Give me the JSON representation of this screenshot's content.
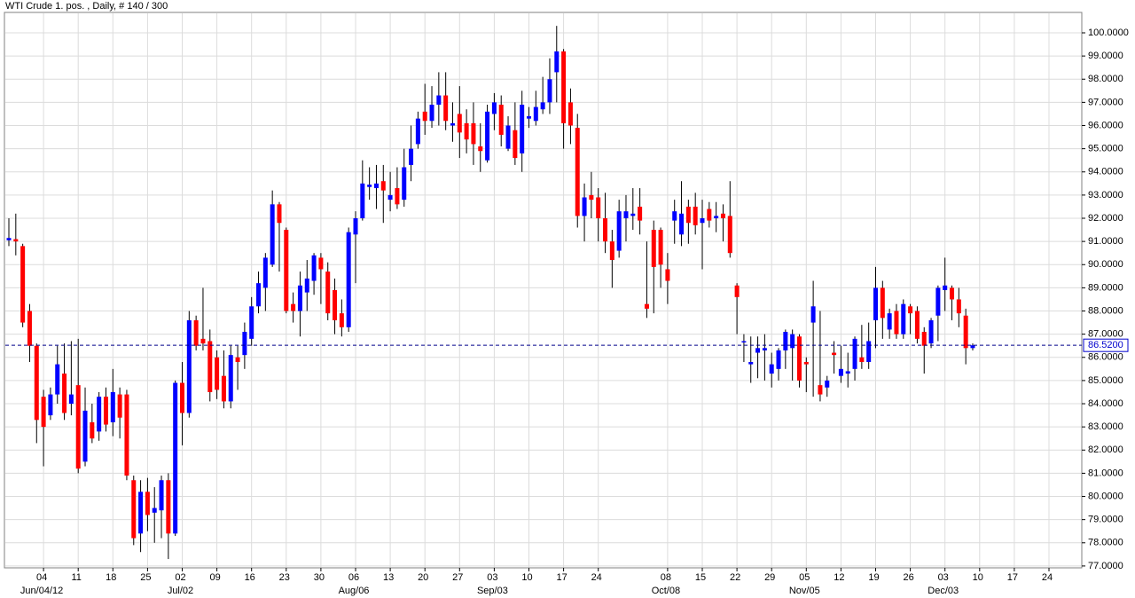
{
  "chart_data": {
    "type": "candlestick",
    "title": "WTI Crude 1. pos. , Daily, # 140 / 300",
    "up_color": "#0000ff",
    "down_color": "#ff0000",
    "wick_color": "#000000",
    "grid": true,
    "x": [
      "2012-05-28",
      "2012-05-29",
      "2012-05-30",
      "2012-05-31",
      "2012-06-01",
      "2012-06-04",
      "2012-06-05",
      "2012-06-06",
      "2012-06-07",
      "2012-06-08",
      "2012-06-11",
      "2012-06-12",
      "2012-06-13",
      "2012-06-14",
      "2012-06-15",
      "2012-06-18",
      "2012-06-19",
      "2012-06-20",
      "2012-06-21",
      "2012-06-22",
      "2012-06-25",
      "2012-06-26",
      "2012-06-27",
      "2012-06-28",
      "2012-06-29",
      "2012-07-02",
      "2012-07-03",
      "2012-07-04",
      "2012-07-05",
      "2012-07-06",
      "2012-07-09",
      "2012-07-10",
      "2012-07-11",
      "2012-07-12",
      "2012-07-13",
      "2012-07-16",
      "2012-07-17",
      "2012-07-18",
      "2012-07-19",
      "2012-07-20",
      "2012-07-23",
      "2012-07-24",
      "2012-07-25",
      "2012-07-26",
      "2012-07-27",
      "2012-07-30",
      "2012-07-31",
      "2012-08-01",
      "2012-08-02",
      "2012-08-03",
      "2012-08-06",
      "2012-08-07",
      "2012-08-08",
      "2012-08-09",
      "2012-08-10",
      "2012-08-13",
      "2012-08-14",
      "2012-08-15",
      "2012-08-16",
      "2012-08-17",
      "2012-08-20",
      "2012-08-21",
      "2012-08-22",
      "2012-08-23",
      "2012-08-24",
      "2012-08-27",
      "2012-08-28",
      "2012-08-29",
      "2012-08-30",
      "2012-08-31",
      "2012-09-03",
      "2012-09-04",
      "2012-09-05",
      "2012-09-06",
      "2012-09-07",
      "2012-09-10",
      "2012-09-11",
      "2012-09-12",
      "2012-09-13",
      "2012-09-14",
      "2012-09-17",
      "2012-09-18",
      "2012-09-19",
      "2012-09-20",
      "2012-09-21",
      "2012-09-24",
      "2012-09-25",
      "2012-09-26",
      "2012-09-27",
      "2012-09-28",
      "2012-10-01",
      "2012-10-02",
      "2012-10-03",
      "2012-10-04",
      "2012-10-05",
      "2012-10-08",
      "2012-10-09",
      "2012-10-10",
      "2012-10-11",
      "2012-10-12",
      "2012-10-15",
      "2012-10-16",
      "2012-10-17",
      "2012-10-18",
      "2012-10-19",
      "2012-10-22",
      "2012-10-23",
      "2012-10-24",
      "2012-10-25",
      "2012-10-26",
      "2012-10-29",
      "2012-10-30",
      "2012-10-31",
      "2012-11-01",
      "2012-11-02",
      "2012-11-05",
      "2012-11-06",
      "2012-11-07",
      "2012-11-08",
      "2012-11-09",
      "2012-11-12",
      "2012-11-13",
      "2012-11-14",
      "2012-11-15",
      "2012-11-16",
      "2012-11-19",
      "2012-11-20",
      "2012-11-21",
      "2012-11-22",
      "2012-11-23",
      "2012-11-26",
      "2012-11-27",
      "2012-11-28",
      "2012-11-29",
      "2012-11-30",
      "2012-12-03",
      "2012-12-04",
      "2012-12-05",
      "2012-12-06",
      "2012-12-07"
    ],
    "open": [
      91.05,
      91.1,
      90.8,
      88.0,
      86.5,
      84.3,
      83.5,
      84.4,
      85.3,
      84.0,
      84.8,
      81.5,
      83.2,
      82.8,
      84.3,
      83.2,
      84.4,
      84.4,
      80.7,
      78.4,
      80.2,
      79.3,
      79.4,
      80.7,
      78.4,
      84.9,
      83.6,
      87.6,
      86.8,
      86.7,
      86.0,
      85.2,
      84.1,
      86.0,
      86.1,
      86.8,
      88.2,
      89.0,
      90.0,
      92.6,
      91.5,
      88.3,
      88.0,
      88.8,
      89.3,
      90.3,
      89.7,
      88.9,
      87.9,
      87.3,
      91.3,
      92.0,
      93.35,
      93.3,
      93.6,
      92.8,
      93.3,
      92.8,
      94.3,
      95.2,
      96.6,
      96.2,
      96.9,
      97.3,
      96.0,
      96.5,
      96.1,
      96.1,
      95.1,
      94.5,
      96.5,
      96.9,
      95.0,
      95.8,
      94.8,
      96.3,
      96.2,
      96.7,
      97.0,
      98.3,
      99.2,
      97.0,
      95.9,
      92.1,
      93.0,
      92.9,
      92.0,
      91.0,
      90.6,
      92.0,
      92.1,
      92.5,
      88.3,
      91.5,
      91.5,
      89.8,
      91.9,
      91.3,
      92.5,
      92.5,
      91.8,
      92.4,
      92.0,
      92.2,
      92.1,
      89.1,
      86.65,
      85.7,
      86.2,
      86.3,
      85.3,
      85.5,
      86.3,
      86.4,
      86.9,
      85.8,
      87.5,
      84.8,
      84.7,
      86.2,
      85.2,
      85.3,
      85.5,
      86.0,
      85.8,
      87.6,
      89.0,
      87.2,
      88.0,
      87.0,
      88.2,
      88.0,
      87.1,
      86.6,
      87.8,
      88.9,
      89.0,
      88.5,
      87.8,
      86.4
    ],
    "high": [
      92.0,
      92.2,
      90.9,
      88.3,
      86.6,
      84.6,
      84.7,
      86.5,
      86.6,
      86.7,
      86.8,
      84.7,
      84.0,
      84.5,
      84.7,
      85.5,
      84.7,
      84.6,
      80.9,
      80.7,
      80.8,
      80.4,
      80.9,
      81.0,
      85.0,
      85.8,
      88.0,
      87.8,
      89.0,
      87.2,
      86.3,
      86.3,
      86.5,
      86.5,
      87.5,
      88.6,
      89.7,
      90.5,
      93.2,
      92.7,
      91.6,
      88.8,
      89.7,
      90.2,
      90.5,
      90.5,
      90.1,
      89.4,
      88.5,
      91.6,
      92.3,
      94.5,
      94.2,
      94.3,
      94.3,
      94.0,
      94.2,
      95.0,
      96.0,
      96.6,
      97.8,
      97.7,
      98.3,
      98.3,
      97.0,
      97.7,
      96.7,
      97.0,
      96.1,
      96.9,
      97.4,
      97.3,
      96.4,
      97.0,
      97.5,
      96.8,
      97.5,
      98.1,
      98.9,
      100.3,
      99.3,
      97.6,
      96.5,
      93.5,
      94.0,
      93.3,
      93.1,
      91.5,
      92.8,
      93.0,
      93.3,
      93.3,
      91.0,
      91.9,
      91.6,
      90.5,
      92.8,
      93.6,
      92.8,
      93.1,
      92.8,
      92.7,
      92.7,
      92.6,
      93.6,
      89.2,
      87.0,
      86.9,
      86.9,
      87.0,
      86.2,
      86.4,
      87.2,
      87.2,
      87.0,
      86.0,
      89.3,
      88.0,
      85.2,
      86.7,
      86.5,
      86.2,
      86.9,
      87.4,
      87.5,
      89.9,
      89.3,
      88.1,
      88.3,
      88.5,
      88.3,
      88.2,
      87.3,
      87.7,
      89.1,
      90.3,
      89.1,
      89.0,
      88.1,
      86.6
    ],
    "low": [
      90.8,
      90.4,
      87.3,
      85.8,
      82.3,
      81.3,
      83.3,
      84.0,
      83.3,
      83.5,
      81.0,
      81.3,
      82.3,
      82.4,
      82.8,
      82.6,
      82.5,
      80.7,
      77.9,
      77.6,
      78.5,
      78.0,
      78.2,
      77.3,
      78.3,
      82.2,
      83.4,
      86.3,
      86.3,
      84.1,
      84.2,
      83.8,
      83.8,
      84.6,
      85.5,
      86.5,
      87.9,
      88.0,
      89.9,
      89.7,
      87.9,
      87.5,
      86.9,
      88.0,
      88.7,
      88.3,
      87.6,
      87.0,
      86.9,
      87.1,
      89.2,
      91.9,
      92.8,
      92.4,
      91.8,
      92.3,
      92.4,
      92.5,
      93.6,
      95.0,
      95.6,
      95.9,
      96.0,
      95.8,
      95.3,
      94.6,
      94.8,
      94.3,
      94.0,
      94.4,
      95.8,
      95.1,
      94.9,
      94.3,
      94.0,
      95.9,
      96.0,
      96.5,
      96.5,
      97.0,
      95.0,
      95.2,
      91.6,
      91.0,
      92.0,
      91.0,
      90.5,
      89.0,
      90.3,
      91.0,
      91.5,
      91.3,
      87.7,
      87.9,
      89.0,
      88.3,
      90.9,
      90.8,
      90.9,
      91.3,
      89.8,
      91.6,
      91.4,
      91.0,
      90.3,
      87.0,
      85.8,
      84.9,
      85.1,
      85.0,
      84.7,
      85.0,
      85.5,
      85.0,
      84.7,
      84.5,
      84.3,
      84.1,
      84.3,
      85.3,
      84.9,
      84.7,
      85.0,
      85.5,
      85.5,
      86.4,
      86.8,
      86.8,
      86.8,
      86.8,
      87.0,
      86.6,
      85.3,
      86.4,
      86.7,
      88.0,
      87.6,
      87.3,
      85.7,
      86.3
    ],
    "close": [
      91.15,
      91.0,
      87.5,
      86.5,
      83.3,
      83.0,
      84.4,
      85.7,
      83.6,
      84.4,
      81.2,
      83.7,
      82.5,
      84.3,
      83.1,
      84.5,
      83.4,
      80.9,
      78.2,
      80.2,
      79.2,
      79.5,
      80.7,
      78.4,
      84.9,
      83.6,
      87.6,
      86.5,
      86.6,
      84.5,
      84.6,
      84.1,
      86.1,
      85.8,
      87.1,
      88.2,
      89.2,
      90.3,
      92.6,
      91.8,
      88.0,
      88.0,
      89.1,
      89.4,
      90.4,
      89.8,
      87.9,
      87.6,
      87.3,
      91.4,
      92.0,
      93.5,
      93.45,
      93.5,
      93.2,
      93.0,
      92.6,
      94.2,
      95.0,
      96.3,
      96.2,
      96.9,
      97.3,
      96.2,
      96.1,
      95.7,
      95.4,
      95.2,
      94.9,
      96.6,
      97.0,
      95.6,
      96.0,
      94.6,
      96.9,
      96.4,
      96.8,
      97.0,
      98.0,
      99.2,
      96.1,
      96.0,
      92.1,
      92.9,
      92.8,
      92.0,
      91.0,
      90.2,
      92.3,
      92.3,
      92.2,
      91.9,
      88.1,
      89.9,
      90.0,
      89.3,
      92.3,
      92.2,
      91.8,
      91.7,
      92.0,
      91.9,
      92.1,
      92.0,
      90.5,
      88.6,
      86.7,
      85.8,
      86.4,
      86.4,
      85.7,
      86.3,
      87.1,
      87.0,
      85.0,
      85.7,
      88.2,
      84.4,
      85.0,
      86.1,
      85.5,
      85.4,
      86.8,
      85.8,
      86.7,
      89.0,
      87.7,
      87.9,
      87.0,
      88.3,
      87.9,
      86.8,
      86.5,
      87.6,
      89.0,
      89.1,
      88.5,
      87.9,
      86.4,
      86.52
    ],
    "last_price": {
      "value": 86.52,
      "label": "86.5200"
    },
    "ylim": [
      76.92,
      100.88
    ],
    "yticks": [
      {
        "value": 77,
        "label": "77.0000"
      },
      {
        "value": 78,
        "label": "78.0000"
      },
      {
        "value": 79,
        "label": "79.0000"
      },
      {
        "value": 80,
        "label": "80.0000"
      },
      {
        "value": 81,
        "label": "81.0000"
      },
      {
        "value": 82,
        "label": "82.0000"
      },
      {
        "value": 83,
        "label": "83.0000"
      },
      {
        "value": 84,
        "label": "84.0000"
      },
      {
        "value": 85,
        "label": "85.0000"
      },
      {
        "value": 86,
        "label": "86.0000"
      },
      {
        "value": 87,
        "label": "87.0000"
      },
      {
        "value": 88,
        "label": "88.0000"
      },
      {
        "value": 89,
        "label": "89.0000"
      },
      {
        "value": 90,
        "label": "90.0000"
      },
      {
        "value": 91,
        "label": "91.0000"
      },
      {
        "value": 92,
        "label": "92.0000"
      },
      {
        "value": 93,
        "label": "93.0000"
      },
      {
        "value": 94,
        "label": "94.0000"
      },
      {
        "value": 95,
        "label": "95.0000"
      },
      {
        "value": 96,
        "label": "96.0000"
      },
      {
        "value": 97,
        "label": "97.0000"
      },
      {
        "value": 98,
        "label": "98.0000"
      },
      {
        "value": 99,
        "label": "99.0000"
      },
      {
        "value": 100,
        "label": "100.0000"
      }
    ],
    "xticks": [
      {
        "value": "2012-06-04",
        "label": "04"
      },
      {
        "value": "2012-06-11",
        "label": "11"
      },
      {
        "value": "2012-06-18",
        "label": "18"
      },
      {
        "value": "2012-06-25",
        "label": "25"
      },
      {
        "value": "2012-07-02",
        "label": "02"
      },
      {
        "value": "2012-07-09",
        "label": "09"
      },
      {
        "value": "2012-07-16",
        "label": "16"
      },
      {
        "value": "2012-07-23",
        "label": "23"
      },
      {
        "value": "2012-07-30",
        "label": "30"
      },
      {
        "value": "2012-08-06",
        "label": "06"
      },
      {
        "value": "2012-08-13",
        "label": "13"
      },
      {
        "value": "2012-08-20",
        "label": "20"
      },
      {
        "value": "2012-08-27",
        "label": "27"
      },
      {
        "value": "2012-09-03",
        "label": "03"
      },
      {
        "value": "2012-09-10",
        "label": "10"
      },
      {
        "value": "2012-09-17",
        "label": "17"
      },
      {
        "value": "2012-09-24",
        "label": "24"
      },
      {
        "value": "2012-10-08",
        "label": "08"
      },
      {
        "value": "2012-10-15",
        "label": "15"
      },
      {
        "value": "2012-10-22",
        "label": "22"
      },
      {
        "value": "2012-10-29",
        "label": "29"
      },
      {
        "value": "2012-11-05",
        "label": "05"
      },
      {
        "value": "2012-11-12",
        "label": "12"
      },
      {
        "value": "2012-11-19",
        "label": "19"
      },
      {
        "value": "2012-11-26",
        "label": "26"
      },
      {
        "value": "2012-12-03",
        "label": "03"
      },
      {
        "value": "2012-12-10",
        "label": "10"
      },
      {
        "value": "2012-12-17",
        "label": "17"
      },
      {
        "value": "2012-12-24",
        "label": "24"
      }
    ],
    "xticks_major": [
      {
        "value": "2012-06-04",
        "label": "Jun/04/12"
      },
      {
        "value": "2012-07-02",
        "label": "Jul/02"
      },
      {
        "value": "2012-08-06",
        "label": "Aug/06"
      },
      {
        "value": "2012-09-03",
        "label": "Sep/03"
      },
      {
        "value": "2012-10-08",
        "label": "Oct/08"
      },
      {
        "value": "2012-11-05",
        "label": "Nov/05"
      },
      {
        "value": "2012-12-03",
        "label": "Dec/03"
      }
    ]
  }
}
